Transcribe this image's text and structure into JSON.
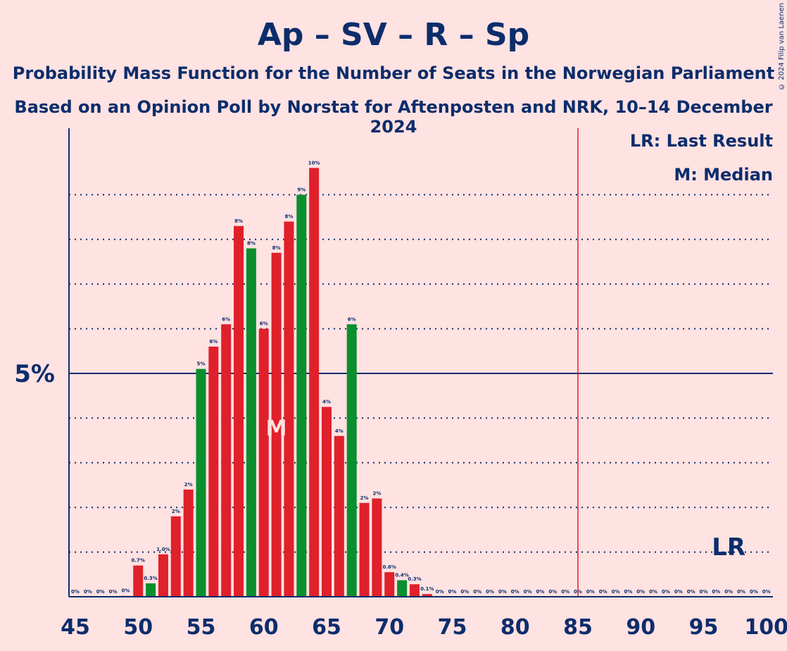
{
  "title": "Ap – SV – R – Sp",
  "subtitle_1": "Probability Mass Function for the Number of Seats in the Norwegian Parliament",
  "subtitle_2": "Based on an Opinion Poll by Norstat for Aftenposten and NRK, 10–14 December 2024",
  "copyright": "© 2024 Filip van Laenen",
  "legend": {
    "lr": "LR: Last Result",
    "m": "M: Median"
  },
  "colors": {
    "background": "#FFE2E2",
    "text": "#0C2D6B",
    "red": "#E0202A",
    "green": "#0A8F2E",
    "majority_line": "#E0202A"
  },
  "chart_data": {
    "type": "bar",
    "xlim": [
      45,
      100
    ],
    "x_ticks": [
      45,
      50,
      55,
      60,
      65,
      70,
      75,
      80,
      85,
      90,
      95,
      100
    ],
    "y_ticks": [
      {
        "value": 5,
        "label": "5%"
      }
    ],
    "ylim": [
      0,
      10.5
    ],
    "majority_line_x": 85,
    "median_x": 61,
    "median_label": "M",
    "last_result_x": 97,
    "last_result_label": "LR",
    "bars": [
      {
        "x": 45,
        "value": 0,
        "label": "0%"
      },
      {
        "x": 46,
        "value": 0,
        "label": "0%"
      },
      {
        "x": 47,
        "value": 0,
        "label": "0%"
      },
      {
        "x": 48,
        "value": 0,
        "label": "0%"
      },
      {
        "x": 49,
        "value": 0.02,
        "label": "0%"
      },
      {
        "x": 50,
        "value": 0.7,
        "label": "0.7%"
      },
      {
        "x": 51,
        "value": 0.3,
        "label": "0.3%"
      },
      {
        "x": 52,
        "value": 0.95,
        "label": "1.0%"
      },
      {
        "x": 53,
        "value": 1.8,
        "label": "2%"
      },
      {
        "x": 54,
        "value": 2.4,
        "label": "2%"
      },
      {
        "x": 55,
        "value": 5.1,
        "label": "5%"
      },
      {
        "x": 56,
        "value": 5.6,
        "label": "6%"
      },
      {
        "x": 57,
        "value": 6.1,
        "label": "6%"
      },
      {
        "x": 58,
        "value": 8.3,
        "label": "8%"
      },
      {
        "x": 59,
        "value": 7.8,
        "label": "8%"
      },
      {
        "x": 60,
        "value": 6.0,
        "label": "6%"
      },
      {
        "x": 61,
        "value": 7.7,
        "label": "8%"
      },
      {
        "x": 62,
        "value": 8.4,
        "label": "8%"
      },
      {
        "x": 63,
        "value": 9.0,
        "label": "9%"
      },
      {
        "x": 64,
        "value": 9.6,
        "label": "10%"
      },
      {
        "x": 65,
        "value": 4.25,
        "label": "4%"
      },
      {
        "x": 66,
        "value": 3.6,
        "label": "4%"
      },
      {
        "x": 67,
        "value": 6.1,
        "label": "6%"
      },
      {
        "x": 68,
        "value": 2.1,
        "label": "2%"
      },
      {
        "x": 69,
        "value": 2.2,
        "label": "2%"
      },
      {
        "x": 70,
        "value": 0.55,
        "label": "0.6%"
      },
      {
        "x": 71,
        "value": 0.37,
        "label": "0.4%"
      },
      {
        "x": 72,
        "value": 0.28,
        "label": "0.3%"
      },
      {
        "x": 73,
        "value": 0.06,
        "label": "0.1%"
      },
      {
        "x": 74,
        "value": 0,
        "label": "0%"
      },
      {
        "x": 75,
        "value": 0,
        "label": "0%"
      },
      {
        "x": 76,
        "value": 0,
        "label": "0%"
      },
      {
        "x": 77,
        "value": 0,
        "label": "0%"
      },
      {
        "x": 78,
        "value": 0,
        "label": "0%"
      },
      {
        "x": 79,
        "value": 0,
        "label": "0%"
      },
      {
        "x": 80,
        "value": 0,
        "label": "0%"
      },
      {
        "x": 81,
        "value": 0,
        "label": "0%"
      },
      {
        "x": 82,
        "value": 0,
        "label": "0%"
      },
      {
        "x": 83,
        "value": 0,
        "label": "0%"
      },
      {
        "x": 84,
        "value": 0,
        "label": "0%"
      },
      {
        "x": 85,
        "value": 0,
        "label": "0%"
      },
      {
        "x": 86,
        "value": 0,
        "label": "0%"
      },
      {
        "x": 87,
        "value": 0,
        "label": "0%"
      },
      {
        "x": 88,
        "value": 0,
        "label": "0%"
      },
      {
        "x": 89,
        "value": 0,
        "label": "0%"
      },
      {
        "x": 90,
        "value": 0,
        "label": "0%"
      },
      {
        "x": 91,
        "value": 0,
        "label": "0%"
      },
      {
        "x": 92,
        "value": 0,
        "label": "0%"
      },
      {
        "x": 93,
        "value": 0,
        "label": "0%"
      },
      {
        "x": 94,
        "value": 0,
        "label": "0%"
      },
      {
        "x": 95,
        "value": 0,
        "label": "0%"
      },
      {
        "x": 96,
        "value": 0,
        "label": "0%"
      },
      {
        "x": 97,
        "value": 0,
        "label": "0%"
      },
      {
        "x": 98,
        "value": 0,
        "label": "0%"
      },
      {
        "x": 99,
        "value": 0,
        "label": "0%"
      },
      {
        "x": 100,
        "value": 0,
        "label": "0%"
      }
    ],
    "green_bars_x": [
      51,
      55,
      59,
      63,
      67,
      71
    ]
  }
}
